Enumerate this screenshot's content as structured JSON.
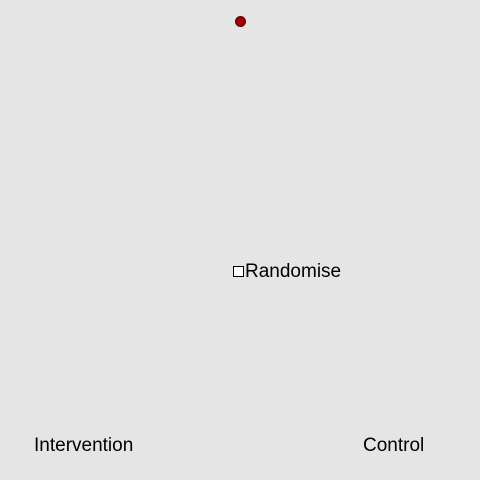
{
  "dot": {
    "color": "#a00000",
    "icon": "circle-marker-icon"
  },
  "randomise": {
    "label": "Randomise",
    "checked": false
  },
  "groups": {
    "left_label": "Intervention",
    "right_label": "Control"
  }
}
